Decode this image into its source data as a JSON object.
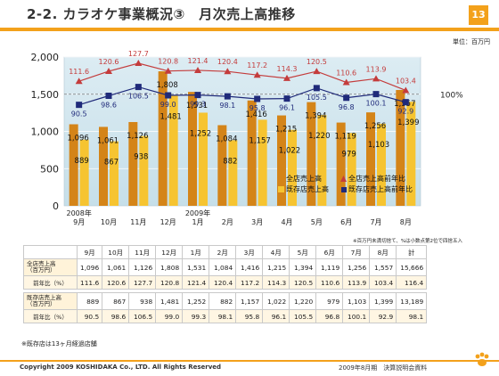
{
  "header": {
    "title": "2-2. カラオケ事業概況③　月次売上高推移",
    "page_number": "13",
    "accent": "#f3a11b"
  },
  "unit": "単位：百万円",
  "note_rounding": "※百万円未満切捨て、%は小数点第2位で四捨五入",
  "note_bottom": "※既存店は13ヶ月経過店舗",
  "footer": {
    "copyright": "Copyright 2009 KOSHIDAKA Co., LTD. All Rights Reserved",
    "doc": "2009年8月期　決算説明会資料"
  },
  "chart_data": {
    "type": "bar",
    "categories": [
      "9月",
      "10月",
      "11月",
      "12月",
      "1月",
      "2月",
      "3月",
      "4月",
      "5月",
      "6月",
      "7月",
      "8月"
    ],
    "year_labels": {
      "0": "2008年",
      "4": "2009年"
    },
    "ylim": [
      0,
      2000
    ],
    "yticks": [
      "0",
      "500",
      "1,000",
      "1,500",
      "2,000"
    ],
    "ref_line_label": "100%",
    "ref_ratio": 100,
    "series": [
      {
        "name": "全店売上高",
        "type": "bar",
        "color": "#d48418",
        "values": [
          1096,
          1061,
          1126,
          1808,
          1531,
          1084,
          1416,
          1215,
          1394,
          1119,
          1256,
          1557
        ],
        "labels": [
          "1,096",
          "1,061",
          "1,126",
          "1,808",
          "1,531",
          "1,084",
          "1,416",
          "1,215",
          "1,394",
          "1,119",
          "1,256",
          "1,557"
        ]
      },
      {
        "name": "既存店売上高",
        "type": "bar",
        "color": "#f6c431",
        "values": [
          889,
          867,
          938,
          1481,
          1252,
          882,
          1157,
          1022,
          1220,
          979,
          1103,
          1399
        ],
        "labels": [
          "889",
          "867",
          "938",
          "1,481",
          "1,252",
          "882",
          "1,157",
          "1,022",
          "1,220",
          "979",
          "1,103",
          "1,399"
        ]
      },
      {
        "name": "全店売上高前年比",
        "type": "line",
        "color": "#c43c3c",
        "values": [
          111.6,
          120.6,
          127.7,
          120.8,
          121.4,
          120.4,
          117.2,
          114.3,
          120.5,
          110.6,
          113.9,
          103.4
        ]
      },
      {
        "name": "既存店売上高前年比",
        "type": "line",
        "color": "#1f2a7a",
        "values": [
          90.5,
          98.6,
          106.5,
          99.0,
          99.3,
          98.1,
          95.8,
          96.1,
          105.5,
          96.8,
          100.1,
          92.9
        ]
      }
    ]
  },
  "table": {
    "columns": [
      "9月",
      "10月",
      "11月",
      "12月",
      "1月",
      "2月",
      "3月",
      "4月",
      "5月",
      "6月",
      "7月",
      "8月",
      "計"
    ],
    "rows": [
      {
        "label": "全店売上高\n（百万円）",
        "values": [
          "1,096",
          "1,061",
          "1,126",
          "1,808",
          "1,531",
          "1,084",
          "1,416",
          "1,215",
          "1,394",
          "1,119",
          "1,256",
          "1,557",
          "15,666"
        ]
      },
      {
        "label": "前年比（%）",
        "values": [
          "111.6",
          "120.6",
          "127.7",
          "120.8",
          "121.4",
          "120.4",
          "117.2",
          "114.3",
          "120.5",
          "110.6",
          "113.9",
          "103.4",
          "116.4"
        ]
      },
      {
        "label": "既存店売上高\n（百万円）",
        "values": [
          "889",
          "867",
          "938",
          "1,481",
          "1,252",
          "882",
          "1,157",
          "1,022",
          "1,220",
          "979",
          "1,103",
          "1,399",
          "13,189"
        ]
      },
      {
        "label": "前年比（%）",
        "values": [
          "90.5",
          "98.6",
          "106.5",
          "99.0",
          "99.3",
          "98.1",
          "95.8",
          "96.1",
          "105.5",
          "96.8",
          "100.1",
          "92.9",
          "98.1"
        ]
      }
    ]
  }
}
